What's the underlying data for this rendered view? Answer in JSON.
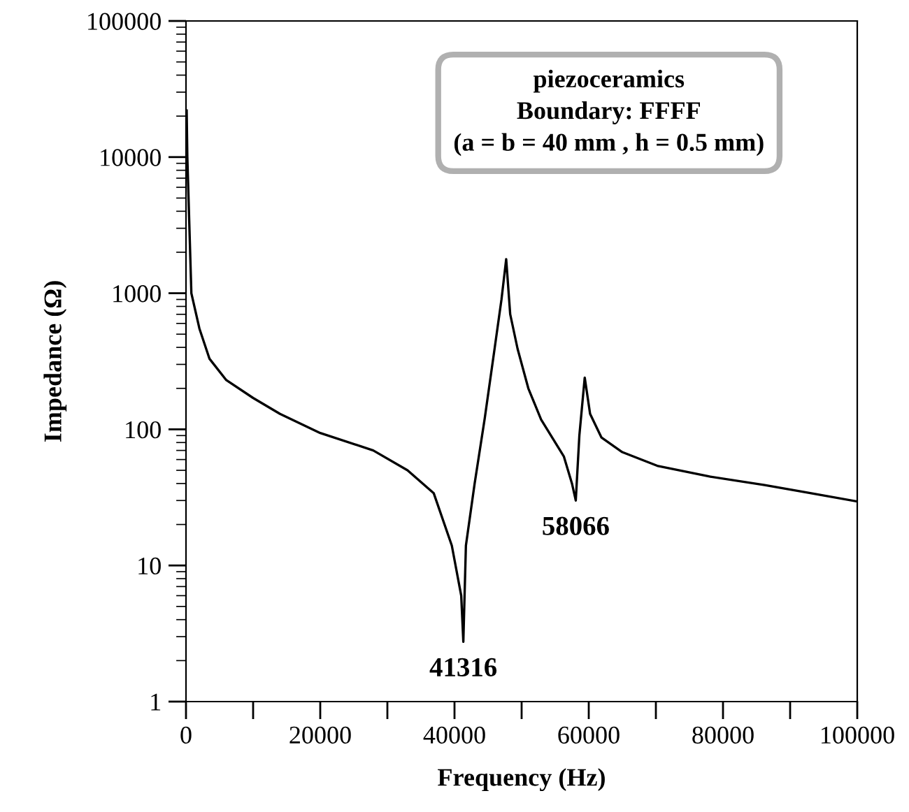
{
  "chart_data": {
    "type": "line",
    "xlabel": "Frequency (Hz)",
    "ylabel": "Impedance (Ω)",
    "log": "y",
    "x": [
      100,
      200,
      800,
      2000,
      3500,
      6000,
      10000,
      14000,
      20000,
      27900,
      33000,
      36900,
      39600,
      41000,
      41316,
      41700,
      43000,
      44500,
      46000,
      47000,
      47700,
      48300,
      49400,
      51000,
      52900,
      56300,
      57500,
      58066,
      58600,
      59400,
      60200,
      61900,
      65000,
      70200,
      78000,
      86200,
      93000,
      100000
    ],
    "series": [
      {
        "color": "#000000",
        "values": [
          22000,
          10000,
          1000,
          550,
          330,
          230,
          170,
          130,
          94,
          70,
          50,
          34,
          14,
          6,
          2.75,
          14,
          40,
          120,
          400,
          900,
          1780,
          700,
          390,
          200,
          118,
          63,
          40,
          30,
          90,
          240,
          130,
          87,
          68,
          54,
          45,
          39,
          34,
          29.5
        ]
      }
    ],
    "xlim": [
      0,
      100000
    ],
    "xticks": [
      0,
      {
        "value": 10000,
        "label": null
      },
      20000,
      {
        "value": 30000,
        "label": null
      },
      40000,
      {
        "value": 50000,
        "label": null
      },
      60000,
      {
        "value": 70000,
        "label": null
      },
      80000,
      {
        "value": 90000,
        "label": null
      },
      100000
    ],
    "ylim": [
      1,
      100000
    ],
    "yticks": [
      1,
      10,
      100,
      1000,
      10000,
      100000
    ],
    "grid": false,
    "legend": false,
    "marker": "none",
    "line_style": "solid",
    "annotations": [
      "piezoceramics",
      "Boundary: FFFF",
      "(a = b = 40 mm , h = 0.5 mm)",
      {
        "text": "41316",
        "x": 41316,
        "y": 2.75
      },
      {
        "text": "58066",
        "x": 58066,
        "y": 30
      }
    ]
  }
}
